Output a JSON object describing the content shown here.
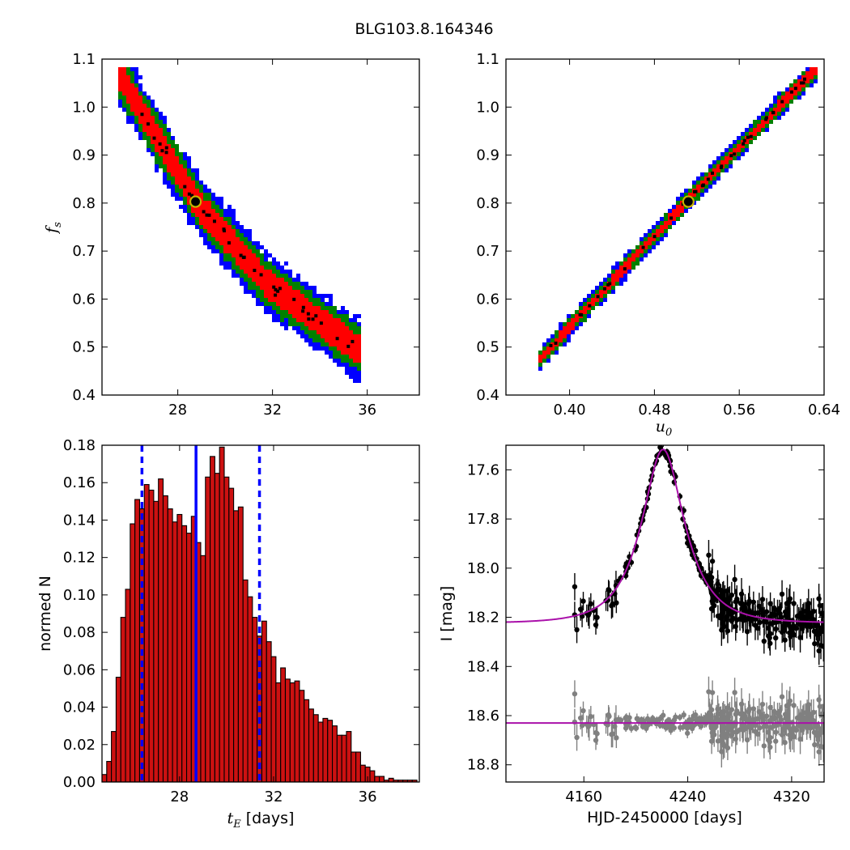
{
  "figure_title": "BLG103.8.164346",
  "colors": {
    "sigma1": "#ff0000",
    "sigma2": "#008000",
    "sigma3": "#0000ff",
    "best": "#000000",
    "marker_edge": "#c8b400",
    "hist_fill": "#cc1111",
    "hist_line": "#0000ff",
    "model": "#aa11aa",
    "data": "#000000",
    "residual": "#808080"
  },
  "chart_data": [
    {
      "id": "tE_fs",
      "type": "heatmap",
      "xlim": [
        24.8,
        38.2
      ],
      "ylim": [
        0.4,
        1.1
      ],
      "xticks": [
        28,
        32,
        36
      ],
      "yticks": [
        0.4,
        0.5,
        0.6,
        0.7,
        0.8,
        0.9,
        1.0,
        1.1
      ],
      "xtick_labels": [
        "28",
        "32",
        "36"
      ],
      "ytick_labels": [
        "0.4",
        "0.5",
        "0.6",
        "0.7",
        "0.8",
        "0.9",
        "1.0",
        "1.1"
      ],
      "ylabel_main": "f",
      "ylabel_sub": "s",
      "band_center": [
        [
          25.5,
          1.07
        ],
        [
          28.8,
          0.8
        ],
        [
          31.8,
          0.63
        ],
        [
          35.5,
          0.5
        ]
      ],
      "band_halfwidth_red": 0.03,
      "band_halfwidth_green": 0.048,
      "band_halfwidth_blue": 0.062,
      "best_fit": [
        28.75,
        0.803
      ]
    },
    {
      "id": "u0_fs",
      "type": "heatmap",
      "xlim": [
        0.34,
        0.64
      ],
      "ylim": [
        0.4,
        1.1
      ],
      "xticks": [
        0.4,
        0.48,
        0.56,
        0.64
      ],
      "yticks": [
        0.4,
        0.5,
        0.6,
        0.7,
        0.8,
        0.9,
        1.0,
        1.1
      ],
      "xtick_labels": [
        "0.40",
        "0.48",
        "0.56",
        "0.64"
      ],
      "ytick_labels": [
        "0.4",
        "0.5",
        "0.6",
        "0.7",
        "0.8",
        "0.9",
        "1.0",
        "1.1"
      ],
      "xlabel_main": "u",
      "xlabel_sub": "0",
      "band_center": [
        [
          0.372,
          0.475
        ],
        [
          0.51,
          0.803
        ],
        [
          0.63,
          1.075
        ]
      ],
      "band_halfwidth_red": 0.01,
      "band_halfwidth_green": 0.018,
      "band_halfwidth_blue": 0.024,
      "best_fit": [
        0.512,
        0.803
      ]
    },
    {
      "id": "tE_hist",
      "type": "bar",
      "xlim": [
        24.7,
        38.2
      ],
      "ylim": [
        0,
        0.18
      ],
      "xticks": [
        28,
        32,
        36
      ],
      "yticks": [
        0.0,
        0.02,
        0.04,
        0.06,
        0.08,
        0.1,
        0.12,
        0.14,
        0.16,
        0.18
      ],
      "xtick_labels": [
        "28",
        "32",
        "36"
      ],
      "ytick_labels": [
        "0.00",
        "0.02",
        "0.04",
        "0.06",
        "0.08",
        "0.10",
        "0.12",
        "0.14",
        "0.16",
        "0.18"
      ],
      "ylabel": "normed N",
      "xlabel_main": "t",
      "xlabel_sub": "E",
      "xlabel_unit": " [days]",
      "bin_start": 24.7,
      "bin_width": 0.2,
      "values": [
        0.004,
        0.011,
        0.027,
        0.056,
        0.088,
        0.103,
        0.138,
        0.151,
        0.146,
        0.159,
        0.156,
        0.15,
        0.162,
        0.153,
        0.146,
        0.139,
        0.143,
        0.137,
        0.133,
        0.142,
        0.128,
        0.121,
        0.163,
        0.174,
        0.165,
        0.179,
        0.163,
        0.157,
        0.145,
        0.147,
        0.108,
        0.099,
        0.088,
        0.078,
        0.086,
        0.075,
        0.067,
        0.053,
        0.061,
        0.055,
        0.053,
        0.054,
        0.049,
        0.044,
        0.039,
        0.036,
        0.032,
        0.034,
        0.033,
        0.03,
        0.025,
        0.025,
        0.027,
        0.016,
        0.016,
        0.009,
        0.008,
        0.006,
        0.003,
        0.003,
        0.001,
        0.002,
        0.001,
        0.001,
        0.001,
        0.001,
        0.001
      ],
      "median": 28.7,
      "lower": 26.4,
      "upper": 31.4
    },
    {
      "id": "lightcurve",
      "type": "scatter",
      "xlim": [
        4100,
        4345
      ],
      "ylim": [
        18.87,
        17.5
      ],
      "xticks": [
        4160,
        4240,
        4320
      ],
      "yticks": [
        17.6,
        17.8,
        18.0,
        18.2,
        18.4,
        18.6,
        18.8
      ],
      "xtick_labels": [
        "4160",
        "4240",
        "4320"
      ],
      "ytick_labels": [
        "17.6",
        "17.8",
        "18.0",
        "18.2",
        "18.4",
        "18.6",
        "18.8"
      ],
      "xlabel": "HJD-2450000 [days]",
      "ylabel": "I [mag]",
      "model": {
        "t0": 4221.0,
        "tE": 29.0,
        "u0": 0.51,
        "fs": 0.8,
        "baseline": 18.224
      },
      "residual_offset": 18.63,
      "npoints": 330
    }
  ]
}
